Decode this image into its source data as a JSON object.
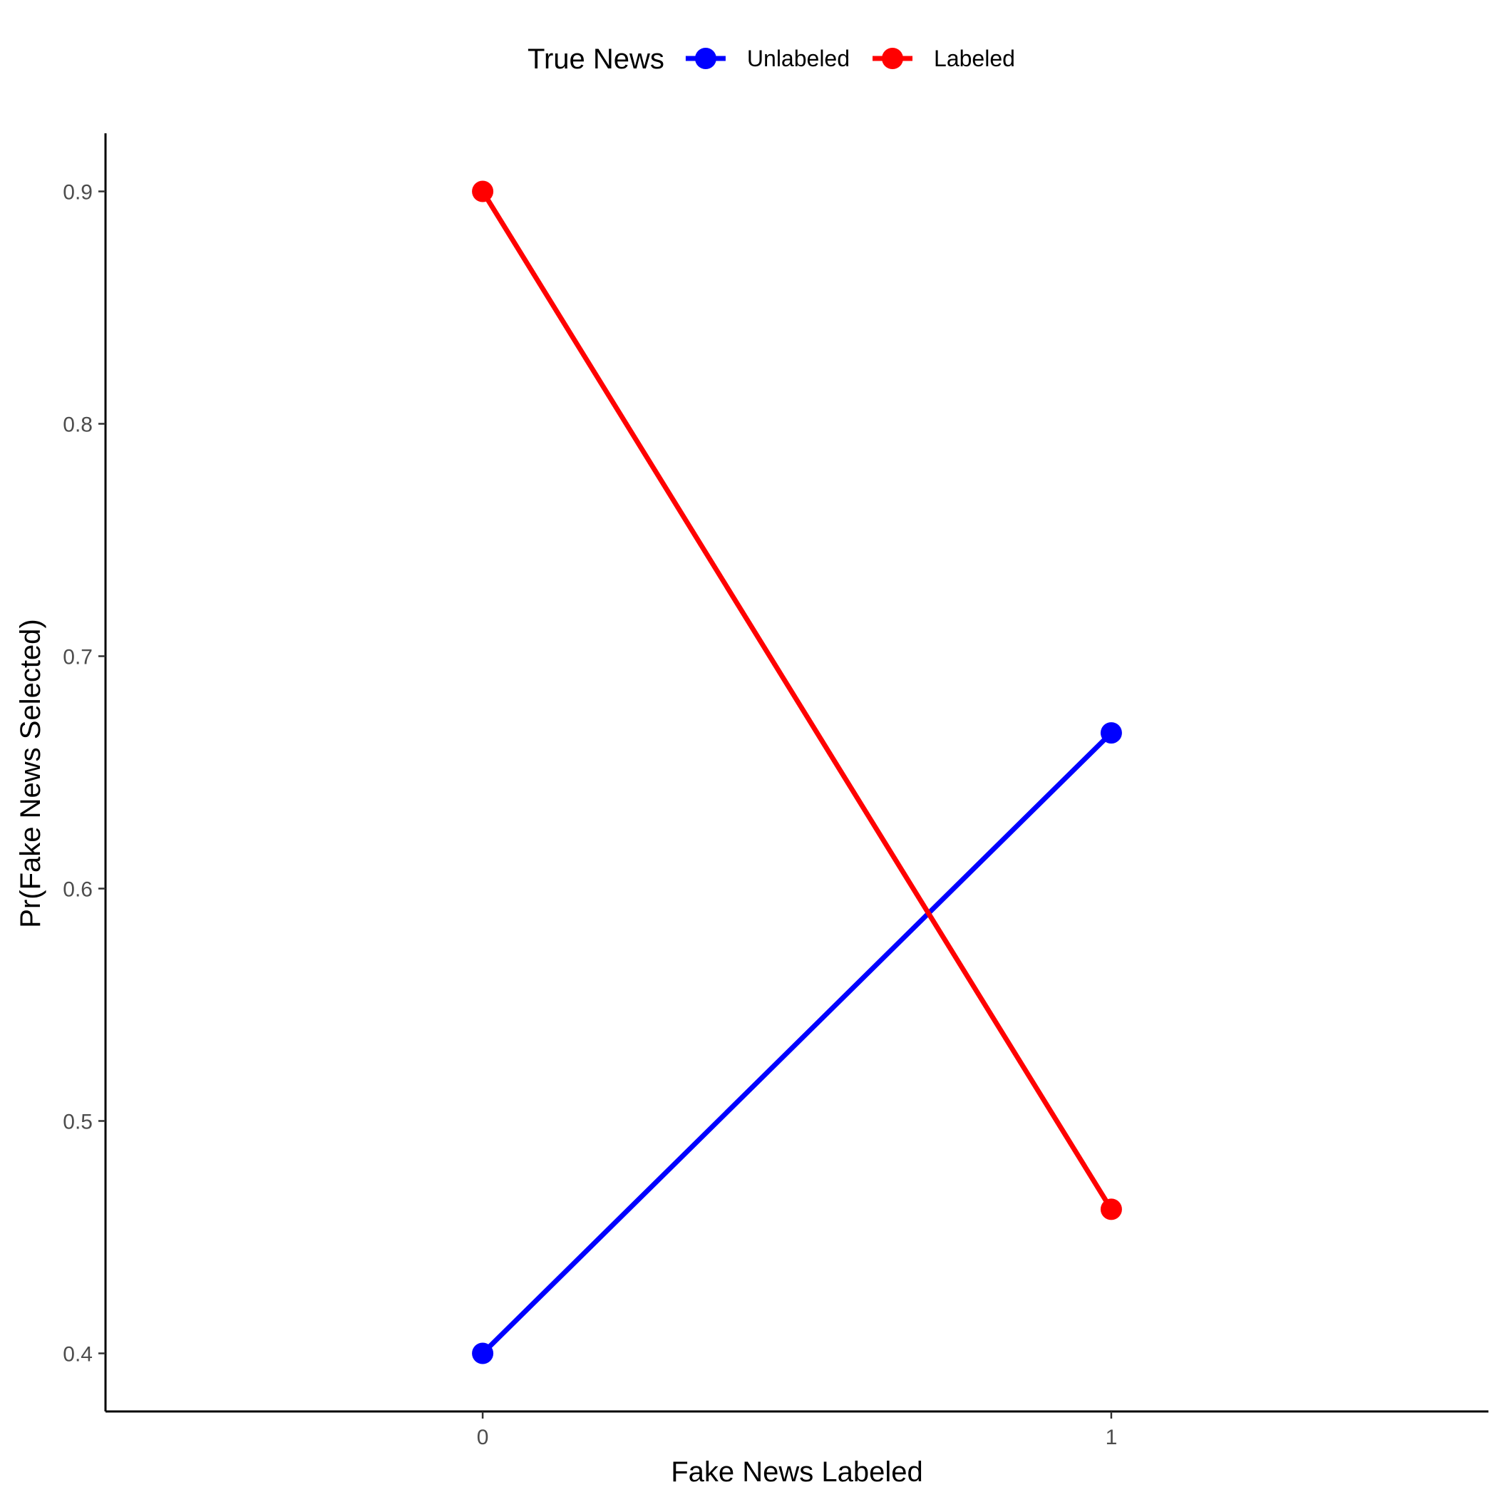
{
  "chart_data": {
    "type": "line",
    "xlabel": "Fake News Labeled",
    "ylabel": "Pr(Fake News Selected)",
    "x": [
      0,
      1
    ],
    "x_tick_labels": [
      "0",
      "1"
    ],
    "y_ticks": [
      0.4,
      0.5,
      0.6,
      0.7,
      0.8,
      0.9
    ],
    "y_tick_labels": [
      "0.4",
      "0.5",
      "0.6",
      "0.7",
      "0.8",
      "0.9"
    ],
    "xlim": [
      -0.6,
      1.6
    ],
    "ylim": [
      0.375,
      0.925
    ],
    "grid": false,
    "legend": {
      "title": "True News",
      "position": "top"
    },
    "series": [
      {
        "name": "Unlabeled",
        "color": "#0000FF",
        "values": [
          0.4,
          0.667
        ]
      },
      {
        "name": "Labeled",
        "color": "#FF0000",
        "values": [
          0.9,
          0.462
        ]
      }
    ]
  }
}
